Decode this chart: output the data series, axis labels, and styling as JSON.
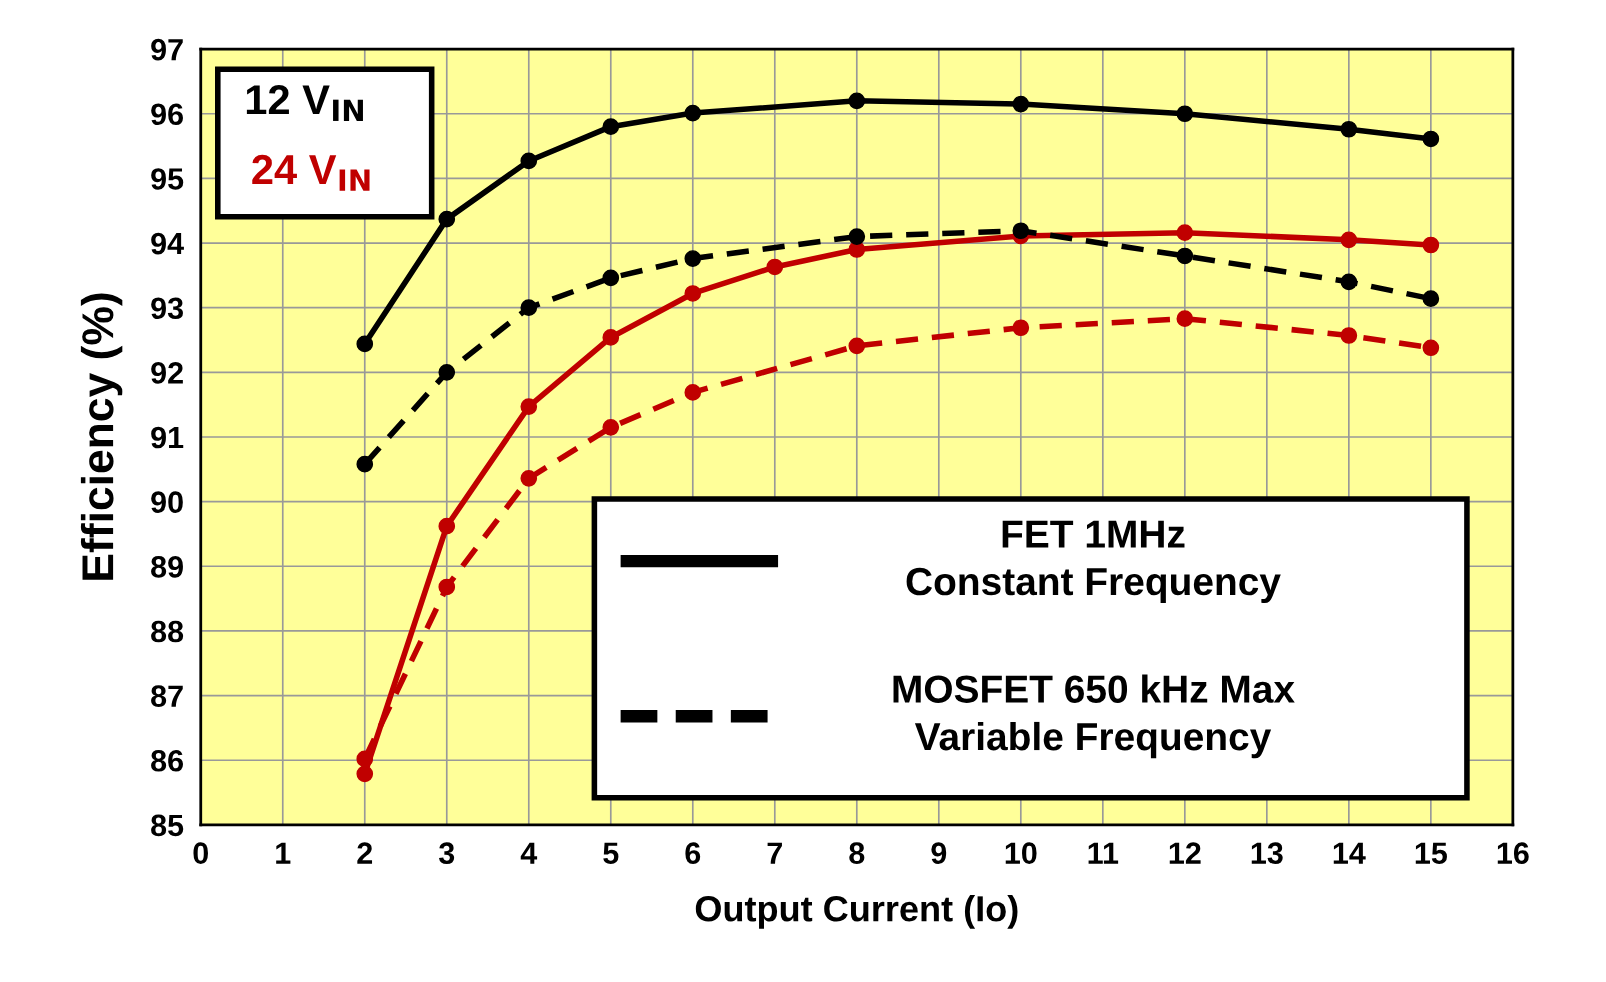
{
  "chart_data": {
    "type": "line",
    "xlabel": "Output Current (Io)",
    "ylabel": "Efficiency (%)",
    "xlim": [
      0,
      16
    ],
    "xticks": [
      0,
      1,
      2,
      3,
      4,
      5,
      6,
      7,
      8,
      9,
      10,
      11,
      12,
      13,
      14,
      15,
      16
    ],
    "ylim": [
      85,
      97
    ],
    "yticks": [
      85,
      86,
      87,
      88,
      89,
      90,
      91,
      92,
      93,
      94,
      95,
      96,
      97
    ],
    "grid": true,
    "marker": "circle",
    "series": [
      {
        "color": "#000000",
        "line_style": "solid",
        "x": [
          2,
          3,
          4,
          5,
          6,
          8,
          10,
          12,
          14,
          15
        ],
        "values": [
          92.44,
          94.37,
          95.27,
          95.8,
          96.01,
          96.2,
          96.15,
          96.0,
          95.76,
          95.61
        ]
      },
      {
        "color": "#000000",
        "line_style": "dashed",
        "x": [
          2,
          3,
          4,
          5,
          6,
          8,
          10,
          12,
          14,
          15
        ],
        "values": [
          90.58,
          92.0,
          93.0,
          93.46,
          93.76,
          94.1,
          94.19,
          93.8,
          93.4,
          93.14
        ]
      },
      {
        "color": "#c00000",
        "line_style": "solid",
        "x": [
          2,
          3,
          4,
          5,
          6,
          7,
          8,
          10,
          12,
          14,
          15
        ],
        "values": [
          85.79,
          89.62,
          91.47,
          92.54,
          93.22,
          93.63,
          93.9,
          94.11,
          94.16,
          94.05,
          93.97
        ]
      },
      {
        "color": "#c00000",
        "line_style": "dashed",
        "x": [
          2,
          3,
          4,
          5,
          6,
          8,
          10,
          12,
          14,
          15
        ],
        "values": [
          86.02,
          88.68,
          90.36,
          91.15,
          91.69,
          92.41,
          92.69,
          92.83,
          92.57,
          92.38
        ]
      }
    ],
    "annotations": [
      "12 V$_{IN}$",
      "24 V$_{IN}$",
      "FET 1MHz\nConstant Frequency",
      "MOSFET 650 kHz Max\nVariable Frequency"
    ]
  }
}
